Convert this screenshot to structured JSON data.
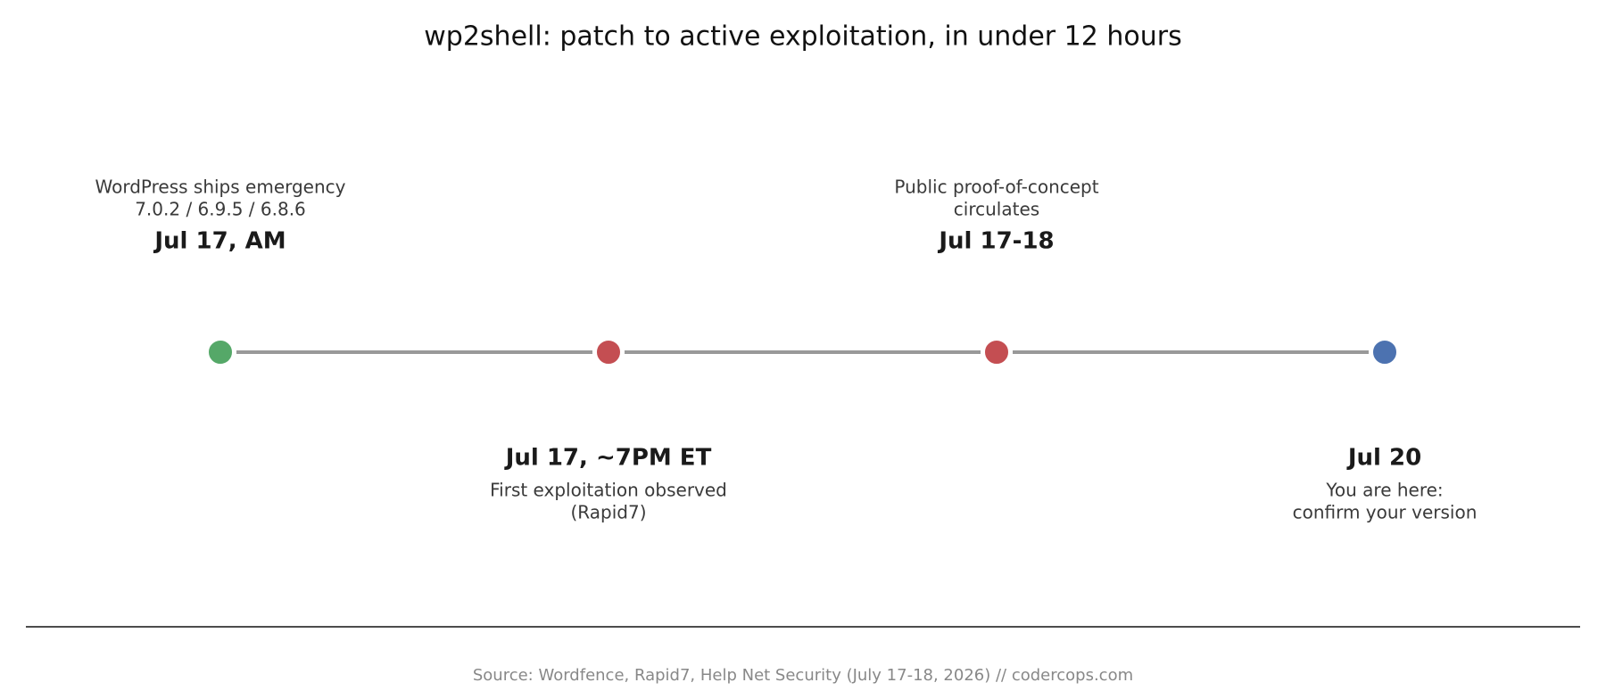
{
  "title": "wp2shell: patch to active exploitation, in under 12 hours",
  "events": [
    {
      "date": "Jul 17, AM",
      "description": [
        "WordPress ships emergency",
        "7.0.2 / 6.9.5 / 6.8.6"
      ],
      "color": "#55a868"
    },
    {
      "date": "Jul 17, ~7PM ET",
      "description": [
        "First exploitation observed",
        "(Rapid7)"
      ],
      "color": "#c44e52"
    },
    {
      "date": "Jul 17-18",
      "description": [
        "Public proof-of-concept",
        "circulates"
      ],
      "color": "#c44e52"
    },
    {
      "date": "Jul 20",
      "description": [
        "You are here:",
        "confirm your version"
      ],
      "color": "#4c72b0"
    }
  ],
  "source": "Source: Wordfence, Rapid7, Help Net Security (July 17-18, 2026)  //  codercops.com"
}
